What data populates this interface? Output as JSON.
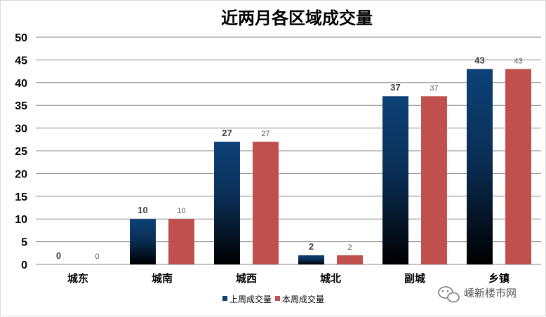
{
  "chart_data": {
    "type": "bar",
    "title": "近两月各区域成交量",
    "categories": [
      "城东",
      "城南",
      "城西",
      "城北",
      "副城",
      "乡镇"
    ],
    "series": [
      {
        "name": "上周成交量",
        "values": [
          0,
          10,
          27,
          2,
          37,
          43
        ],
        "color_top": "#0d4177",
        "color_bottom": "#000000"
      },
      {
        "name": "本周成交量",
        "values": [
          0,
          10,
          27,
          2,
          37,
          43
        ],
        "color": "#c0504d"
      }
    ],
    "ylim": [
      0,
      50
    ],
    "yticks": [
      0,
      5,
      10,
      15,
      20,
      25,
      30,
      35,
      40,
      45,
      50
    ],
    "grid": true,
    "legend": "bottom",
    "xlabel": "",
    "ylabel": ""
  },
  "watermark": {
    "text": "嵊新楼市网",
    "icon": "wechat-icon"
  }
}
